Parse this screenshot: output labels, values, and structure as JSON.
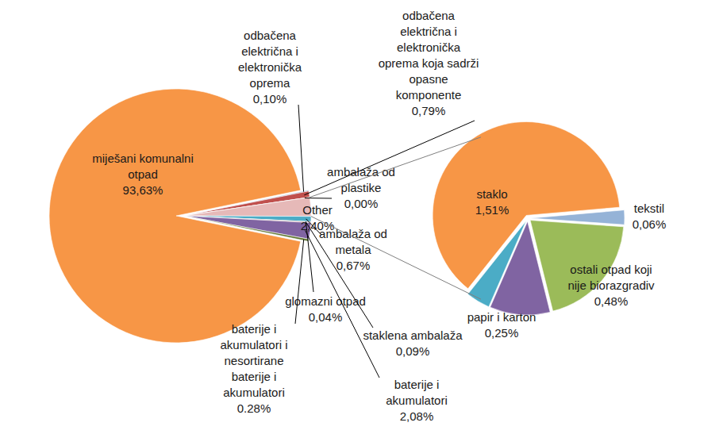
{
  "chart_data": [
    {
      "type": "pie",
      "categories": [
        "miješani komunalni otpad",
        "odbačena električna i elektronička oprema",
        "odbačena električna i elektronička oprema koja sadrži opasne komponente",
        "ambalaža od plastike",
        "Other",
        "ambalaža od metala",
        "glomazni otpad",
        "staklena ambalaža",
        "baterije i akumulatori",
        "baterije i akumulatori i nesortirane baterije i akumulatori"
      ],
      "values": [
        93.63,
        0.1,
        0.79,
        0.0,
        2.4,
        0.67,
        0.04,
        0.09,
        2.08,
        0.28
      ],
      "value_labels": [
        "93,63%",
        "0,10%",
        "0,79%",
        "0,00%",
        "2,40%",
        "0,67%",
        "0,04%",
        "0,09%",
        "2,08%",
        "0.28%"
      ],
      "colors": [
        "#F79646",
        "#4F81BD",
        "#C0504D",
        "#9BBB59",
        "#E6B9B8",
        "#4BACC6",
        "#2C4D75",
        "#772C2A",
        "#8064A2",
        "#5F7530"
      ],
      "data_labels": true
    },
    {
      "type": "pie",
      "categories": [
        "staklo",
        "tekstil",
        "ostali otpad koji nije biorazgradiv",
        "papir i karton",
        null
      ],
      "values": [
        1.51,
        0.06,
        0.48,
        0.25,
        0.1
      ],
      "value_labels": [
        "1,51%",
        "0,06%",
        "0,48%",
        "0,25%",
        null
      ],
      "colors": [
        "#F79646",
        "#95B3D7",
        "#9BBB59",
        "#8064A2",
        "#4BACC6"
      ],
      "data_labels": true
    }
  ]
}
